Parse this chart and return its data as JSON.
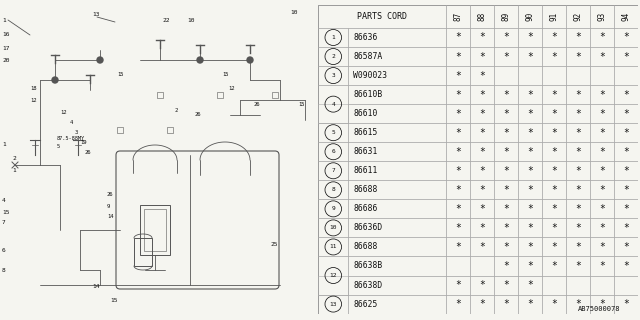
{
  "bg_color": "#f5f5f0",
  "diagram_label": "AB75000078",
  "table_header_cols": [
    "87",
    "88",
    "89",
    "90",
    "91",
    "92",
    "93",
    "94"
  ],
  "line_color": "#999999",
  "text_color": "#111111",
  "rows": [
    {
      "num": "1",
      "circled": true,
      "part": "86636",
      "marks": [
        1,
        1,
        1,
        1,
        1,
        1,
        1,
        1
      ],
      "merged_top": false,
      "merged_bot": false
    },
    {
      "num": "2",
      "circled": true,
      "part": "86587A",
      "marks": [
        1,
        1,
        1,
        1,
        1,
        1,
        1,
        1
      ],
      "merged_top": false,
      "merged_bot": false
    },
    {
      "num": "3",
      "circled": true,
      "part": "W090023",
      "marks": [
        1,
        1,
        0,
        0,
        0,
        0,
        0,
        0
      ],
      "merged_top": false,
      "merged_bot": false
    },
    {
      "num": "4",
      "circled": true,
      "part": "86610B",
      "marks": [
        1,
        1,
        1,
        1,
        1,
        1,
        1,
        1
      ],
      "merged_top": true,
      "merged_bot": false
    },
    {
      "num": "",
      "circled": false,
      "part": "86610",
      "marks": [
        1,
        1,
        1,
        1,
        1,
        1,
        1,
        1
      ],
      "merged_top": false,
      "merged_bot": true
    },
    {
      "num": "5",
      "circled": true,
      "part": "86615",
      "marks": [
        1,
        1,
        1,
        1,
        1,
        1,
        1,
        1
      ],
      "merged_top": false,
      "merged_bot": false
    },
    {
      "num": "6",
      "circled": true,
      "part": "86631",
      "marks": [
        1,
        1,
        1,
        1,
        1,
        1,
        1,
        1
      ],
      "merged_top": false,
      "merged_bot": false
    },
    {
      "num": "7",
      "circled": true,
      "part": "86611",
      "marks": [
        1,
        1,
        1,
        1,
        1,
        1,
        1,
        1
      ],
      "merged_top": false,
      "merged_bot": false
    },
    {
      "num": "8",
      "circled": true,
      "part": "86688",
      "marks": [
        1,
        1,
        1,
        1,
        1,
        1,
        1,
        1
      ],
      "merged_top": false,
      "merged_bot": false
    },
    {
      "num": "9",
      "circled": true,
      "part": "86686",
      "marks": [
        1,
        1,
        1,
        1,
        1,
        1,
        1,
        1
      ],
      "merged_top": false,
      "merged_bot": false
    },
    {
      "num": "10",
      "circled": true,
      "part": "86636D",
      "marks": [
        1,
        1,
        1,
        1,
        1,
        1,
        1,
        1
      ],
      "merged_top": false,
      "merged_bot": false
    },
    {
      "num": "11",
      "circled": true,
      "part": "86688",
      "marks": [
        1,
        1,
        1,
        1,
        1,
        1,
        1,
        1
      ],
      "merged_top": false,
      "merged_bot": false
    },
    {
      "num": "12",
      "circled": true,
      "part": "86638B",
      "marks": [
        0,
        0,
        1,
        1,
        1,
        1,
        1,
        1
      ],
      "merged_top": true,
      "merged_bot": false
    },
    {
      "num": "",
      "circled": false,
      "part": "86638D",
      "marks": [
        1,
        1,
        1,
        1,
        0,
        0,
        0,
        0
      ],
      "merged_top": false,
      "merged_bot": true
    },
    {
      "num": "13",
      "circled": true,
      "part": "86625",
      "marks": [
        1,
        1,
        1,
        1,
        1,
        1,
        1,
        1
      ],
      "merged_top": false,
      "merged_bot": false
    }
  ]
}
